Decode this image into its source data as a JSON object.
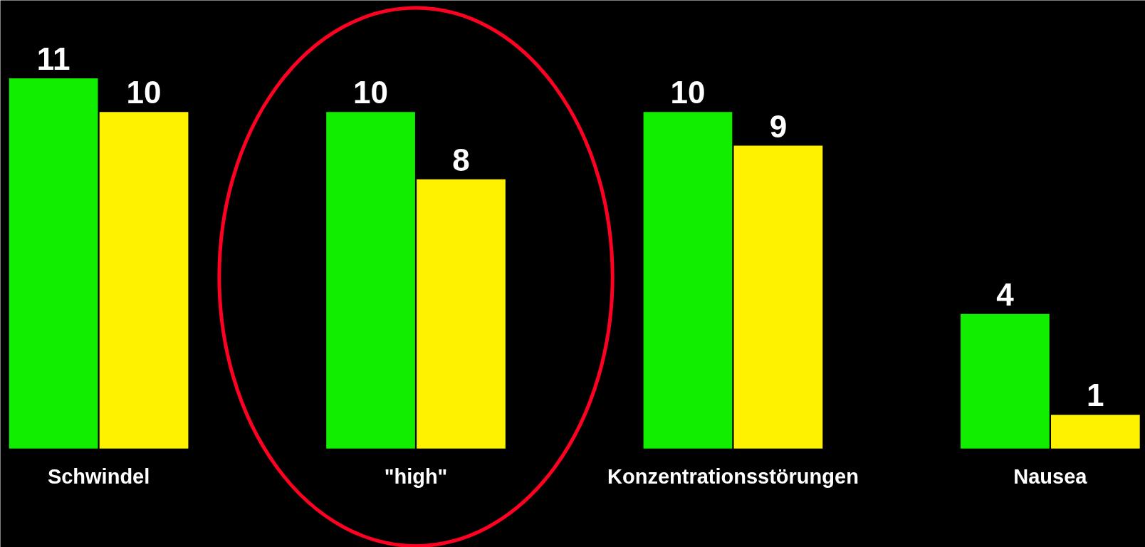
{
  "chart_data": {
    "type": "bar",
    "categories": [
      "Schwindel",
      "\"high\"",
      "Konzentrationsstörungen",
      "Nausea"
    ],
    "series": [
      {
        "color": "#11ee00",
        "values": [
          11,
          10,
          10,
          4
        ]
      },
      {
        "color": "#fff200",
        "values": [
          10,
          8,
          9,
          1
        ]
      }
    ],
    "data_labels": true
  }
}
